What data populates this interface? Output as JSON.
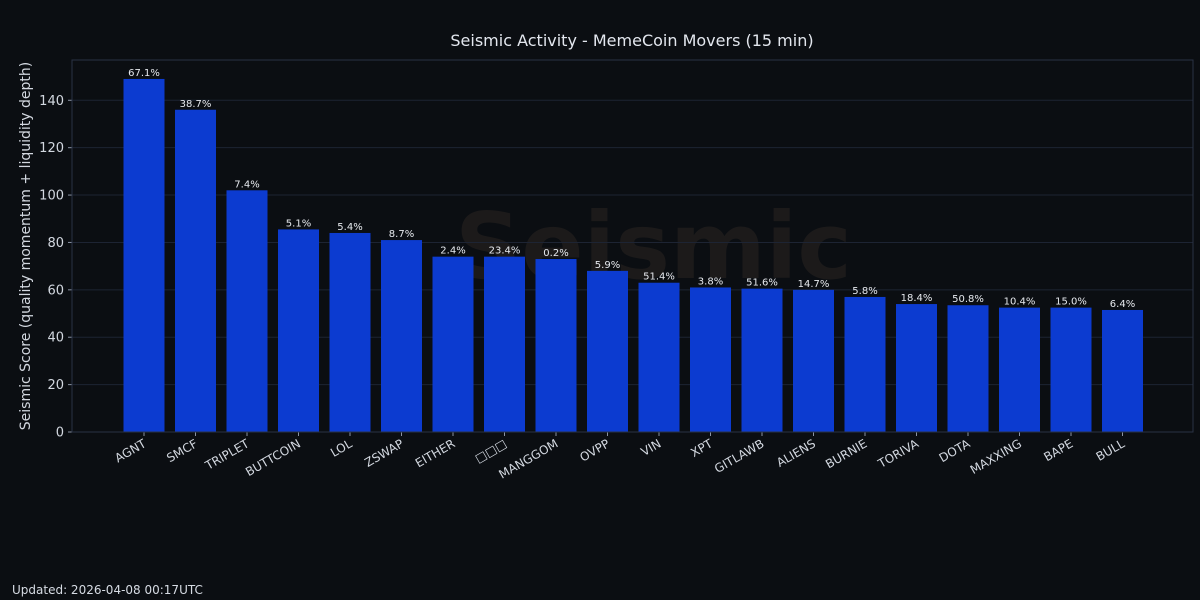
{
  "chart_data": {
    "type": "bar",
    "title": "Seismic Activity - MemeCoin Movers (15 min)",
    "xlabel": "",
    "ylabel": "Seismic Score (quality momentum + liquidity depth)",
    "ylim": [
      0,
      157
    ],
    "yticks": [
      0,
      20,
      40,
      60,
      80,
      100,
      120,
      140
    ],
    "grid": true,
    "bar_color": "#0c3bd0",
    "categories": [
      "AGNT",
      "SMCF",
      "TRIPLET",
      "BUTTCOIN",
      "LOL",
      "ZSWAP",
      "EITHER",
      "□□□",
      "MANGGOM",
      "OVPP",
      "VIN",
      "XPT",
      "GITLAWB",
      "ALIENS",
      "BURNIE",
      "TORIVA",
      "DOTA",
      "MAXXING",
      "BAPE",
      "BULL"
    ],
    "values": [
      149,
      136,
      102,
      85.5,
      84,
      81,
      74,
      74,
      73,
      68,
      63,
      61,
      60.5,
      60,
      57,
      54,
      53.5,
      52.5,
      52.5,
      51.5
    ],
    "labels": [
      "67.1%",
      "38.7%",
      "7.4%",
      "5.1%",
      "5.4%",
      "8.7%",
      "2.4%",
      "23.4%",
      "0.2%",
      "5.9%",
      "51.4%",
      "3.8%",
      "51.6%",
      "14.7%",
      "5.8%",
      "18.4%",
      "50.8%",
      "10.4%",
      "15.0%",
      "6.4%"
    ]
  },
  "watermark": "Seismic",
  "footer": "Updated: 2026-04-08 00:17UTC"
}
